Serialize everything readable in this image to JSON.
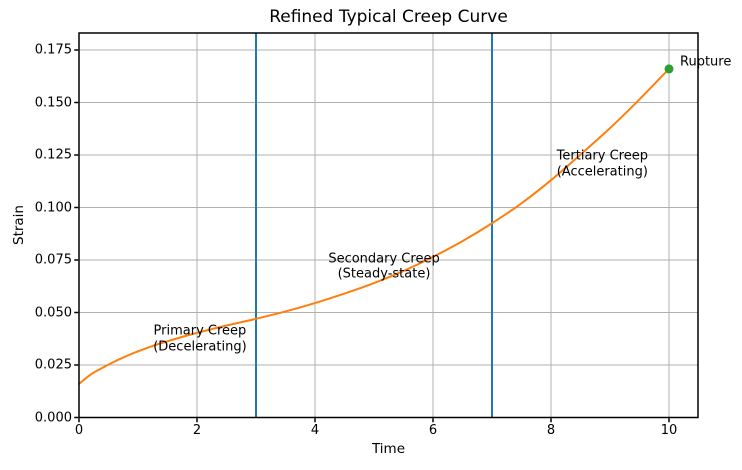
{
  "colors": {
    "curve": "#ff7f0e",
    "phase_boundary": "#1f77b4",
    "rupture_marker": "#2ca02c",
    "grid": "#b0b0b0",
    "spine": "#000000",
    "text": "#000000",
    "background": "#ffffff"
  },
  "chart_data": {
    "type": "line",
    "title": "Refined Typical Creep Curve",
    "xlabel": "Time",
    "ylabel": "Strain",
    "xlim": [
      0,
      10.5
    ],
    "ylim": [
      0,
      0.183
    ],
    "grid": true,
    "legend": "none",
    "xticks": [
      {
        "v": 0,
        "label": "0"
      },
      {
        "v": 2,
        "label": "2"
      },
      {
        "v": 4,
        "label": "4"
      },
      {
        "v": 6,
        "label": "6"
      },
      {
        "v": 8,
        "label": "8"
      },
      {
        "v": 10,
        "label": "10"
      }
    ],
    "yticks": [
      {
        "v": 0.0,
        "label": "0.000"
      },
      {
        "v": 0.025,
        "label": "0.025"
      },
      {
        "v": 0.05,
        "label": "0.050"
      },
      {
        "v": 0.075,
        "label": "0.075"
      },
      {
        "v": 0.1,
        "label": "0.100"
      },
      {
        "v": 0.125,
        "label": "0.125"
      },
      {
        "v": 0.15,
        "label": "0.150"
      },
      {
        "v": 0.175,
        "label": "0.175"
      }
    ],
    "series": [
      {
        "name": "creep curve",
        "color": "#ff7f0e",
        "x": [
          0,
          0.2,
          0.4,
          0.6,
          0.8,
          1,
          1.25,
          1.5,
          1.75,
          2,
          2.5,
          3,
          3.5,
          4,
          4.5,
          5,
          5.5,
          6,
          6.5,
          7,
          7.5,
          8,
          8.5,
          9,
          9.5,
          10
        ],
        "y": [
          0.016,
          0.0205,
          0.0237,
          0.0266,
          0.0292,
          0.0315,
          0.0341,
          0.0363,
          0.0384,
          0.0403,
          0.0438,
          0.047,
          0.0505,
          0.0545,
          0.059,
          0.064,
          0.0698,
          0.0765,
          0.084,
          0.0925,
          0.102,
          0.113,
          0.1252,
          0.1378,
          0.1515,
          0.166
        ]
      }
    ],
    "phase_boundaries": [
      {
        "x": 3
      },
      {
        "x": 7
      }
    ],
    "rupture_point": {
      "x": 10,
      "y": 0.166,
      "label": "Rupture",
      "color": "#2ca02c"
    },
    "annotations": [
      {
        "lines": [
          "Primary Creep",
          "(Decelerating)"
        ],
        "x": 2.05,
        "y": 0.0372
      },
      {
        "lines": [
          "Secondary Creep",
          "(Steady-state)"
        ],
        "x": 5.17,
        "y": 0.0716
      },
      {
        "lines": [
          "Tertiary Creep",
          "(Accelerating)"
        ],
        "x": 8.87,
        "y": 0.1206
      }
    ]
  }
}
